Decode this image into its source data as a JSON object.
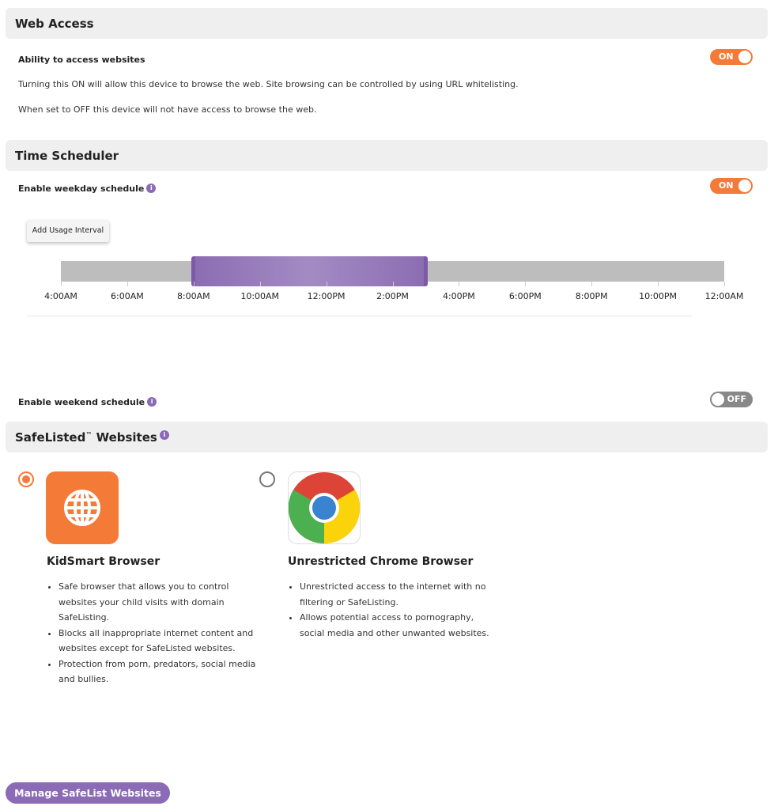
{
  "web_access": {
    "title": "Web Access",
    "label": "Ability to access websites",
    "toggle": "ON",
    "desc1": "Turning this ON will allow this device to browse the web. Site browsing can be controlled by using URL whitelisting.",
    "desc2": "When set to OFF this device will not have access to browse the web."
  },
  "time_scheduler": {
    "title": "Time Scheduler",
    "weekday_label": "Enable weekday schedule",
    "weekday_toggle": "ON",
    "add_interval": "Add Usage Interval",
    "ticks": [
      "4:00AM",
      "6:00AM",
      "8:00AM",
      "10:00AM",
      "12:00PM",
      "2:00PM",
      "4:00PM",
      "6:00PM",
      "8:00PM",
      "10:00PM",
      "12:00AM"
    ],
    "interval": {
      "start_hour": 8,
      "end_hour": 15
    },
    "range_hours": [
      4,
      24
    ],
    "weekend_label": "Enable weekend schedule",
    "weekend_toggle": "OFF",
    "info": "i"
  },
  "safelist": {
    "title": "SafeListed",
    "tm": "™",
    "title2": " Websites",
    "options": [
      {
        "name": "KidSmart Browser",
        "selected": true,
        "icon": "globe-icon",
        "color": "#f47a38",
        "bullets": [
          "Safe browser that allows you to control websites your child visits with domain SafeListing.",
          "Blocks all inappropriate internet content and websites except for SafeListed websites.",
          "Protection from porn, predators, social media and bullies."
        ]
      },
      {
        "name": "Unrestricted Chrome Browser",
        "selected": false,
        "icon": "chrome-icon",
        "bullets": [
          "Unrestricted access to the internet with no filtering or SafeListing.",
          "Allows potential access to pornography, social media and other unwanted websites."
        ]
      }
    ],
    "manage_button": "Manage SafeList Websites"
  }
}
